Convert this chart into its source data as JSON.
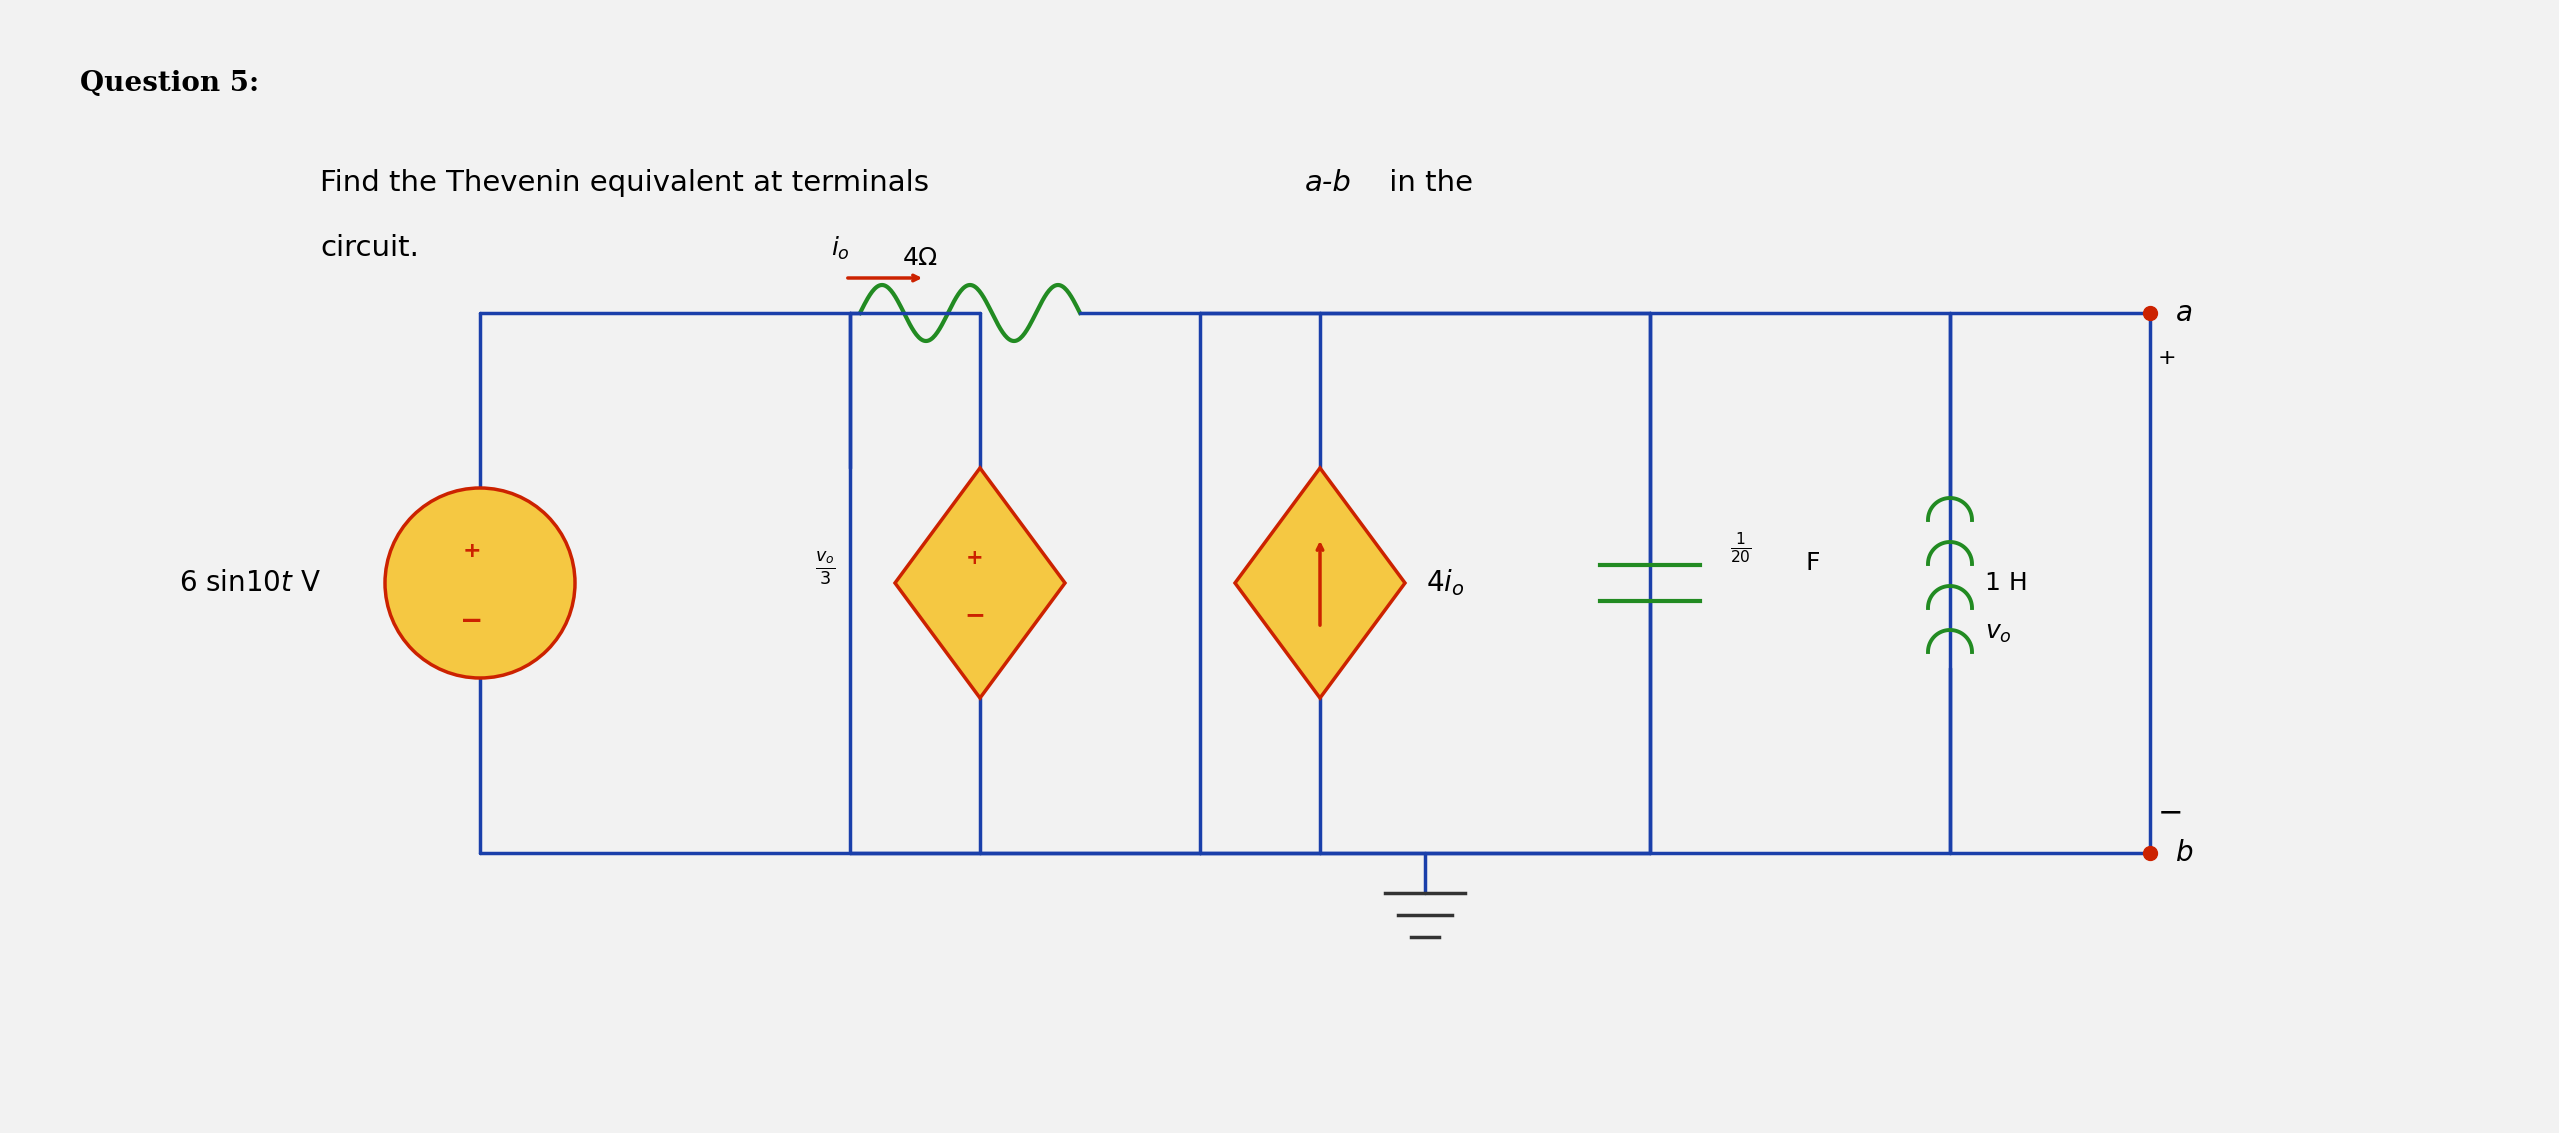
{
  "title_q": "Question 5:",
  "title_text1": "Find the Thevenin equivalent at terminals ",
  "title_italic": "a-b",
  "title_text2": " in the",
  "title_text3": "circuit.",
  "bg_color": "#f0f0f0",
  "wire_color": "#1a3faa",
  "resistor_color": "#228B22",
  "source_fill": "#f5c842",
  "source_border": "#cc2200",
  "inductor_color": "#228B22",
  "capacitor_color": "#228B22",
  "terminal_color": "#cc2200",
  "arrow_color": "#cc2200",
  "font_size_title": 22,
  "font_size_label": 20
}
